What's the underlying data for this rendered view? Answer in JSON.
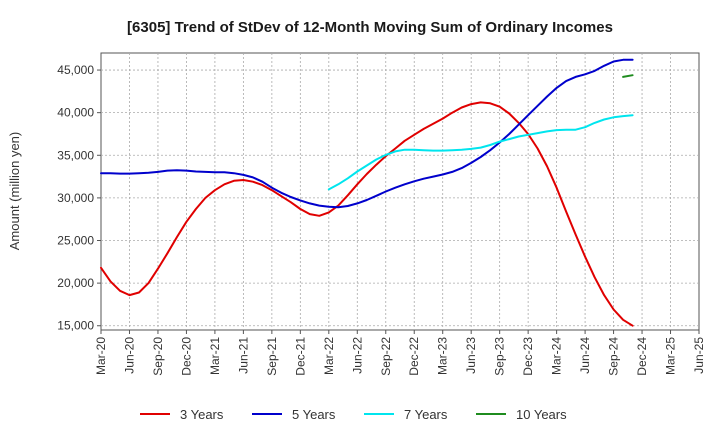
{
  "chart_data": {
    "type": "line",
    "title": "[6305]  Trend of StDev of 12-Month Moving Sum of Ordinary Incomes",
    "xlabel": "",
    "ylabel": "Amount (million yen)",
    "x_categories": [
      "Mar-20",
      "Jun-20",
      "Sep-20",
      "Dec-20",
      "Mar-21",
      "Jun-21",
      "Sep-21",
      "Dec-21",
      "Mar-22",
      "Jun-22",
      "Sep-22",
      "Dec-22",
      "Mar-23",
      "Jun-23",
      "Sep-23",
      "Dec-23",
      "Mar-24",
      "Jun-24",
      "Sep-24",
      "Dec-24",
      "Mar-25",
      "Jun-25"
    ],
    "y_ticks": [
      "15,000",
      "20,000",
      "25,000",
      "30,000",
      "35,000",
      "40,000",
      "45,000"
    ],
    "ylim": [
      14500,
      47000
    ],
    "grid": true,
    "legend_position": "bottom",
    "series": [
      {
        "name": "3 Years",
        "color": "#e00000",
        "start_index": 0,
        "values": [
          21800,
          20200,
          19100,
          18600,
          18900,
          20000,
          21700,
          23500,
          25400,
          27200,
          28700,
          30000,
          30900,
          31600,
          32000,
          32100,
          31900,
          31500,
          30900,
          30200,
          29500,
          28700,
          28100,
          27900,
          28300,
          29100,
          30300,
          31600,
          32800,
          33900,
          34900,
          35800,
          36700,
          37400,
          38100,
          38700,
          39300,
          40000,
          40600,
          41000,
          41200,
          41100,
          40700,
          39900,
          38800,
          37500,
          35800,
          33700,
          31200,
          28400,
          25700,
          23100,
          20700,
          18600,
          16900,
          15700,
          15000
        ]
      },
      {
        "name": "5 Years",
        "color": "#0000cc",
        "start_index": 0,
        "values": [
          32900,
          32900,
          32850,
          32850,
          32900,
          32950,
          33050,
          33200,
          33250,
          33200,
          33100,
          33050,
          33000,
          33000,
          32900,
          32700,
          32400,
          31900,
          31200,
          30600,
          30100,
          29700,
          29350,
          29100,
          28950,
          28900,
          29050,
          29350,
          29750,
          30250,
          30750,
          31200,
          31600,
          31950,
          32250,
          32500,
          32750,
          33050,
          33500,
          34100,
          34800,
          35600,
          36500,
          37500,
          38600,
          39700,
          40800,
          41900,
          42900,
          43700,
          44200,
          44500,
          44900,
          45500,
          46000,
          46200,
          46200
        ]
      },
      {
        "name": "7 Years",
        "color": "#00e5ee",
        "start_index": 24,
        "values": [
          31000,
          31600,
          32300,
          33100,
          33800,
          34500,
          35050,
          35450,
          35650,
          35650,
          35600,
          35550,
          35550,
          35600,
          35650,
          35750,
          35900,
          36200,
          36600,
          36900,
          37200,
          37400,
          37600,
          37800,
          37950,
          38000,
          38000,
          38300,
          38800,
          39200,
          39450,
          39600,
          39700
        ]
      },
      {
        "name": "10 Years",
        "color": "#1f8c1f",
        "start_index": 55,
        "values": [
          44200,
          44400
        ]
      }
    ]
  }
}
